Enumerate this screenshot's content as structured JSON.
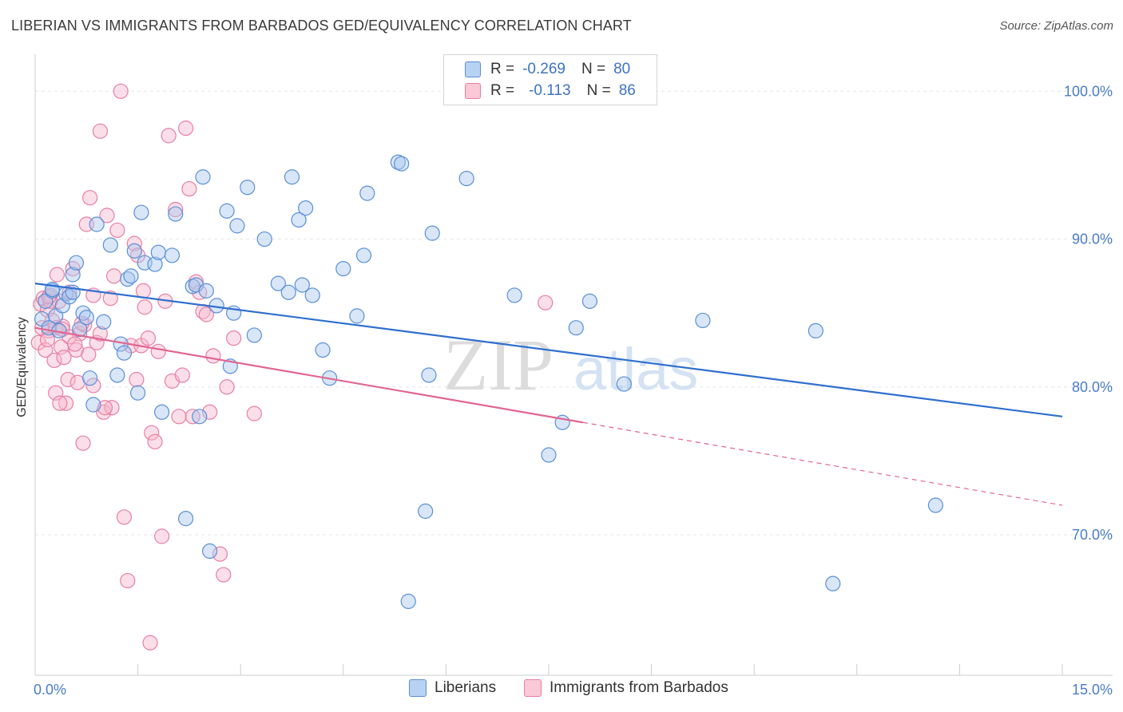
{
  "title": "LIBERIAN VS IMMIGRANTS FROM BARBADOS GED/EQUIVALENCY CORRELATION CHART",
  "source": "Source: ZipAtlas.com",
  "watermark": {
    "zip": "ZIP",
    "atlas": "atlas"
  },
  "colors": {
    "blue_fill": "#a9c8ef",
    "blue_stroke": "#5b8fd6",
    "blue_line": "#2f6fd0",
    "pink_fill": "#f6b9cc",
    "pink_stroke": "#e87fa2",
    "pink_line": "#e0668f",
    "grid": "#e6e6e6",
    "tick_text": "#4a7cc7"
  },
  "legend": {
    "rows": [
      {
        "r_label": "R =",
        "r_value": "-0.269",
        "n_label": "N =",
        "n_value": "80"
      },
      {
        "r_label": "R =",
        "r_value": "-0.113",
        "n_label": "N =",
        "n_value": "86"
      }
    ]
  },
  "bottom_legend": {
    "liberians": "Liberians",
    "barbados": "Immigrants from Barbados"
  },
  "chart_data": {
    "type": "scatter",
    "title": "LIBERIAN VS IMMIGRANTS FROM BARBADOS GED/EQUIVALENCY CORRELATION CHART",
    "xlabel": "",
    "ylabel": "GED/Equivalency",
    "xlim": [
      0,
      15
    ],
    "ylim": [
      60.5,
      102.5
    ],
    "x_tick_labels": [
      "0.0%",
      "15.0%"
    ],
    "y_ticks": [
      {
        "value": 70,
        "label": "70.0%"
      },
      {
        "value": 80,
        "label": "80.0%"
      },
      {
        "value": 90,
        "label": "90.0%"
      },
      {
        "value": 100,
        "label": "100.0%"
      }
    ],
    "series": [
      {
        "name": "Liberians",
        "r": -0.269,
        "n": 80,
        "trend": {
          "x": [
            0.0,
            15.0
          ],
          "y": [
            87.0,
            78.0
          ],
          "dashed_from": null
        },
        "points": [
          [
            0.1,
            84.6
          ],
          [
            0.15,
            85.8
          ],
          [
            0.2,
            84.0
          ],
          [
            0.25,
            86.5
          ],
          [
            0.3,
            84.8
          ],
          [
            0.35,
            83.8
          ],
          [
            0.4,
            85.5
          ],
          [
            0.45,
            86.3
          ],
          [
            0.5,
            86.1
          ],
          [
            0.55,
            87.6
          ],
          [
            0.6,
            88.4
          ],
          [
            0.65,
            83.9
          ],
          [
            0.7,
            85.0
          ],
          [
            0.75,
            84.7
          ],
          [
            0.8,
            80.6
          ],
          [
            0.85,
            78.8
          ],
          [
            0.9,
            91.0
          ],
          [
            1.1,
            89.6
          ],
          [
            1.2,
            80.8
          ],
          [
            1.25,
            82.9
          ],
          [
            1.3,
            82.3
          ],
          [
            1.35,
            87.3
          ],
          [
            1.4,
            87.5
          ],
          [
            1.45,
            89.2
          ],
          [
            1.5,
            79.6
          ],
          [
            1.55,
            91.8
          ],
          [
            1.6,
            88.4
          ],
          [
            1.75,
            88.3
          ],
          [
            1.8,
            89.1
          ],
          [
            1.85,
            78.3
          ],
          [
            2.0,
            88.9
          ],
          [
            2.05,
            91.7
          ],
          [
            2.2,
            71.1
          ],
          [
            2.3,
            86.8
          ],
          [
            2.35,
            86.9
          ],
          [
            2.4,
            78.0
          ],
          [
            2.45,
            94.2
          ],
          [
            2.5,
            86.5
          ],
          [
            2.55,
            68.9
          ],
          [
            2.65,
            85.5
          ],
          [
            2.8,
            91.9
          ],
          [
            2.85,
            81.4
          ],
          [
            2.9,
            85.0
          ],
          [
            2.95,
            90.9
          ],
          [
            3.1,
            93.5
          ],
          [
            3.2,
            83.5
          ],
          [
            3.35,
            90.0
          ],
          [
            3.55,
            87.0
          ],
          [
            3.7,
            86.4
          ],
          [
            3.75,
            94.2
          ],
          [
            3.85,
            91.3
          ],
          [
            3.9,
            86.9
          ],
          [
            3.95,
            92.1
          ],
          [
            4.05,
            86.2
          ],
          [
            4.2,
            82.5
          ],
          [
            4.3,
            80.6
          ],
          [
            4.5,
            88.0
          ],
          [
            4.7,
            84.8
          ],
          [
            4.8,
            88.9
          ],
          [
            4.85,
            93.1
          ],
          [
            5.3,
            95.2
          ],
          [
            5.35,
            95.1
          ],
          [
            5.45,
            65.5
          ],
          [
            5.7,
            71.6
          ],
          [
            5.75,
            80.8
          ],
          [
            5.8,
            90.4
          ],
          [
            6.3,
            94.1
          ],
          [
            7.0,
            86.2
          ],
          [
            7.5,
            75.4
          ],
          [
            7.7,
            77.6
          ],
          [
            7.9,
            84.0
          ],
          [
            8.1,
            85.8
          ],
          [
            8.6,
            80.2
          ],
          [
            9.75,
            84.5
          ],
          [
            11.4,
            83.8
          ],
          [
            11.65,
            66.7
          ],
          [
            13.15,
            72.0
          ],
          [
            0.25,
            86.6
          ],
          [
            0.55,
            86.4
          ],
          [
            1.0,
            84.4
          ]
        ]
      },
      {
        "name": "Immigrants from Barbados",
        "r": -0.113,
        "n": 86,
        "trend": {
          "x": [
            0.0,
            15.0
          ],
          "y": [
            84.0,
            72.0
          ],
          "dashed_from": 8.0
        },
        "points": [
          [
            0.05,
            83.0
          ],
          [
            0.08,
            85.6
          ],
          [
            0.1,
            84.0
          ],
          [
            0.12,
            86.0
          ],
          [
            0.15,
            82.5
          ],
          [
            0.18,
            85.2
          ],
          [
            0.2,
            83.8
          ],
          [
            0.22,
            86.2
          ],
          [
            0.25,
            84.5
          ],
          [
            0.28,
            81.8
          ],
          [
            0.3,
            79.6
          ],
          [
            0.32,
            87.6
          ],
          [
            0.35,
            85.8
          ],
          [
            0.38,
            82.7
          ],
          [
            0.4,
            84.1
          ],
          [
            0.42,
            82.0
          ],
          [
            0.45,
            78.9
          ],
          [
            0.48,
            80.5
          ],
          [
            0.5,
            86.4
          ],
          [
            0.55,
            88.0
          ],
          [
            0.6,
            82.5
          ],
          [
            0.62,
            80.3
          ],
          [
            0.65,
            83.6
          ],
          [
            0.7,
            76.2
          ],
          [
            0.72,
            84.2
          ],
          [
            0.75,
            91.0
          ],
          [
            0.78,
            82.2
          ],
          [
            0.8,
            92.8
          ],
          [
            0.85,
            80.1
          ],
          [
            0.9,
            83.0
          ],
          [
            0.95,
            97.3
          ],
          [
            1.0,
            78.3
          ],
          [
            1.05,
            91.6
          ],
          [
            1.1,
            86.0
          ],
          [
            1.12,
            78.6
          ],
          [
            1.15,
            87.5
          ],
          [
            1.2,
            90.6
          ],
          [
            1.25,
            100.0
          ],
          [
            1.3,
            71.2
          ],
          [
            1.35,
            66.9
          ],
          [
            1.4,
            82.8
          ],
          [
            1.45,
            89.7
          ],
          [
            1.5,
            88.9
          ],
          [
            1.55,
            82.8
          ],
          [
            1.6,
            85.4
          ],
          [
            1.65,
            83.3
          ],
          [
            1.7,
            76.9
          ],
          [
            1.75,
            76.3
          ],
          [
            1.8,
            82.4
          ],
          [
            1.85,
            69.9
          ],
          [
            1.9,
            85.8
          ],
          [
            1.95,
            97.0
          ],
          [
            2.0,
            80.4
          ],
          [
            2.05,
            92.0
          ],
          [
            2.1,
            78.0
          ],
          [
            2.15,
            80.8
          ],
          [
            2.2,
            97.5
          ],
          [
            2.25,
            93.4
          ],
          [
            2.3,
            78.0
          ],
          [
            2.35,
            87.1
          ],
          [
            2.4,
            86.4
          ],
          [
            2.45,
            85.1
          ],
          [
            2.5,
            84.9
          ],
          [
            2.55,
            78.3
          ],
          [
            2.6,
            82.1
          ],
          [
            2.7,
            68.7
          ],
          [
            2.75,
            67.3
          ],
          [
            2.8,
            80.0
          ],
          [
            2.9,
            83.3
          ],
          [
            3.2,
            78.2
          ],
          [
            7.45,
            85.7
          ],
          [
            1.68,
            62.7
          ],
          [
            0.18,
            83.2
          ],
          [
            0.3,
            84.0
          ],
          [
            0.4,
            83.9
          ],
          [
            0.5,
            83.4
          ],
          [
            0.58,
            82.9
          ],
          [
            0.68,
            84.3
          ],
          [
            1.02,
            78.6
          ],
          [
            1.48,
            80.5
          ],
          [
            0.22,
            85.8
          ],
          [
            0.85,
            86.2
          ],
          [
            0.95,
            83.6
          ],
          [
            0.36,
            78.9
          ],
          [
            1.58,
            86.5
          ],
          [
            0.2,
            86.1
          ]
        ]
      }
    ]
  }
}
